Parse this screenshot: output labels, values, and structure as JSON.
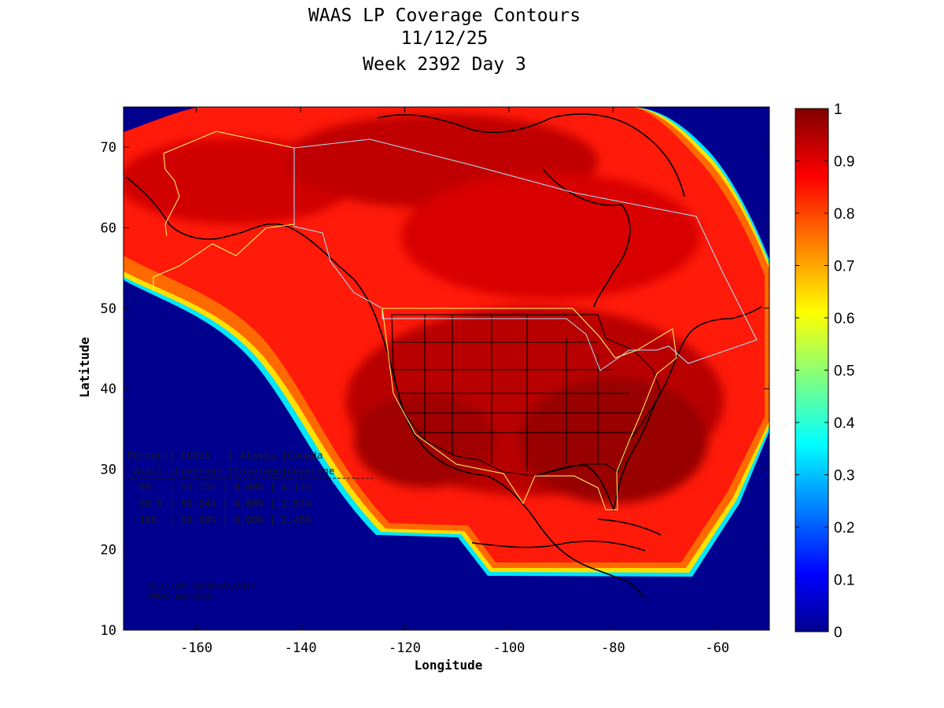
{
  "title": {
    "line1": "WAAS LP Coverage Contours",
    "line2": "11/12/25",
    "line3": "Week 2392 Day 3"
  },
  "axes": {
    "xlabel": "Longitude",
    "ylabel": "Latitude",
    "xlim": [
      -174,
      -50
    ],
    "ylim": [
      10,
      75
    ],
    "xticks": [
      -160,
      -140,
      -120,
      -100,
      -80,
      -60
    ],
    "yticks": [
      10,
      20,
      30,
      40,
      50,
      60,
      70
    ]
  },
  "colorbar": {
    "range": [
      0,
      1
    ],
    "ticks": [
      "0",
      "0.1",
      "0.2",
      "0.3",
      "0.4",
      "0.5",
      "0.6",
      "0.7",
      "0.8",
      "0.9",
      "1"
    ],
    "colormap": "jet",
    "colors": [
      "#00008f",
      "#0000ff",
      "#00ffff",
      "#ffff00",
      "#ff0000",
      "#800000"
    ]
  },
  "coverage_table": {
    "header1": "Percent| CONUS   | Alaska |Canada",
    "header2": " Avail.|Coverage |Coverage|Coverage",
    "rows": [
      "  99   | 53.75% | 0.00% | 4.13%",
      "  99.9 | 50.24% | 0.00% | 2.57%",
      "  100  | 09.59% | 0.00% | 2.48%"
    ]
  },
  "credit": {
    "line1": "N.J.U. FAA Technical Center",
    "line2": "WAAS Test Team"
  },
  "chart_data": {
    "type": "heatmap",
    "title": "WAAS LP Coverage Contours",
    "subtitle": "11/12/25 Week 2392 Day 3",
    "xlabel": "Longitude",
    "ylabel": "Latitude",
    "xlim": [
      -174,
      -50
    ],
    "ylim": [
      10,
      75
    ],
    "value_range": [
      0,
      1
    ],
    "legend": "colorbar-right",
    "table": {
      "columns": [
        "Percent Avail.",
        "CONUS Coverage",
        "Alaska Coverage",
        "Canada Coverage"
      ],
      "rows": [
        [
          "99",
          "53.75%",
          "0.00%",
          "4.13%"
        ],
        [
          "99.9",
          "50.24%",
          "0.00%",
          "2.57%"
        ],
        [
          "100",
          "09.59%",
          "0.00%",
          "2.48%"
        ]
      ]
    }
  }
}
